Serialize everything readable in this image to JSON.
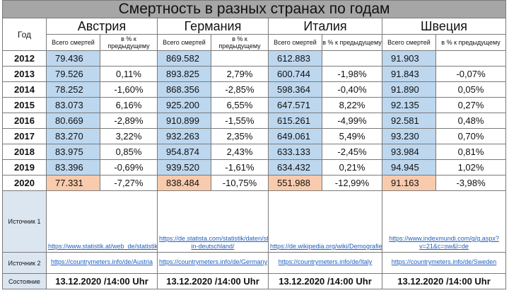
{
  "title": "Смертность в разных странах по годам",
  "header": {
    "year_label": "Год",
    "total_label": "Всего смертей",
    "pct_label": "в % к предыдущему"
  },
  "countries": [
    "Австрия",
    "Германия",
    "Италия",
    "Швеция"
  ],
  "rows": [
    {
      "year": "2012",
      "v": [
        "79.436",
        "",
        "869.582",
        "",
        "612.883",
        "",
        "91.903",
        ""
      ]
    },
    {
      "year": "2013",
      "v": [
        "79.526",
        "0,11%",
        "893.825",
        "2,79%",
        "600.744",
        "-1,98%",
        "91.843",
        "-0,07%"
      ]
    },
    {
      "year": "2014",
      "v": [
        "78.252",
        "-1,60%",
        "868.356",
        "-2,85%",
        "598.364",
        "-0,40%",
        "91.890",
        "0,05%"
      ]
    },
    {
      "year": "2015",
      "v": [
        "83.073",
        "6,16%",
        "925.200",
        "6,55%",
        "647.571",
        "8,22%",
        "92.135",
        "0,27%"
      ]
    },
    {
      "year": "2016",
      "v": [
        "80.669",
        "-2,89%",
        "910.899",
        "-1,55%",
        "615.261",
        "-4,99%",
        "92.581",
        "0,48%"
      ]
    },
    {
      "year": "2017",
      "v": [
        "83.270",
        "3,22%",
        "932.263",
        "2,35%",
        "649.061",
        "5,49%",
        "93.230",
        "0,70%"
      ]
    },
    {
      "year": "2018",
      "v": [
        "83.975",
        "0,85%",
        "954.874",
        "2,43%",
        "633.133",
        "-2,45%",
        "93.984",
        "0,81%"
      ]
    },
    {
      "year": "2019",
      "v": [
        "83.396",
        "-0,69%",
        "939.520",
        "-1,61%",
        "634.432",
        "0,21%",
        "94.945",
        "1,02%"
      ]
    },
    {
      "year": "2020",
      "v": [
        "77.331",
        "-7,27%",
        "838.484",
        "-10,75%",
        "551.988",
        "-12,99%",
        "91.163",
        "-3,98%"
      ]
    }
  ],
  "source1_label": "Источник 1",
  "source1": [
    "https://www.statistik.at/web_de/statistiken/menschen_und_gesellschaft/bevoelkerung/gestorbene/index.html",
    "https://de.statista.com/statistik/daten/studie/156902/umfrage/sterbefaelle-in-deutschland/",
    "https://de.wikipedia.org/wiki/Demografie_Italiens",
    "https://www.indexmundi.com/g/g.aspx?v=21&c=sw&l=de"
  ],
  "source2_label": "Источник 2",
  "source2": [
    "https://countrymeters.info/de/Austria",
    "https://countrymeters.info/de/Germany",
    "https://countrymeters.info/de/Italy",
    "https://countrymeters.info/de/Sweden"
  ],
  "state_label": "Состояние",
  "state": "13.12.2020 /14:00 Uhr",
  "colors": {
    "title_bg": "#a6a6a6",
    "value_bg": "#bdd7ee",
    "last_row_bg": "#f8cbad",
    "link": "#1f5fbf"
  }
}
